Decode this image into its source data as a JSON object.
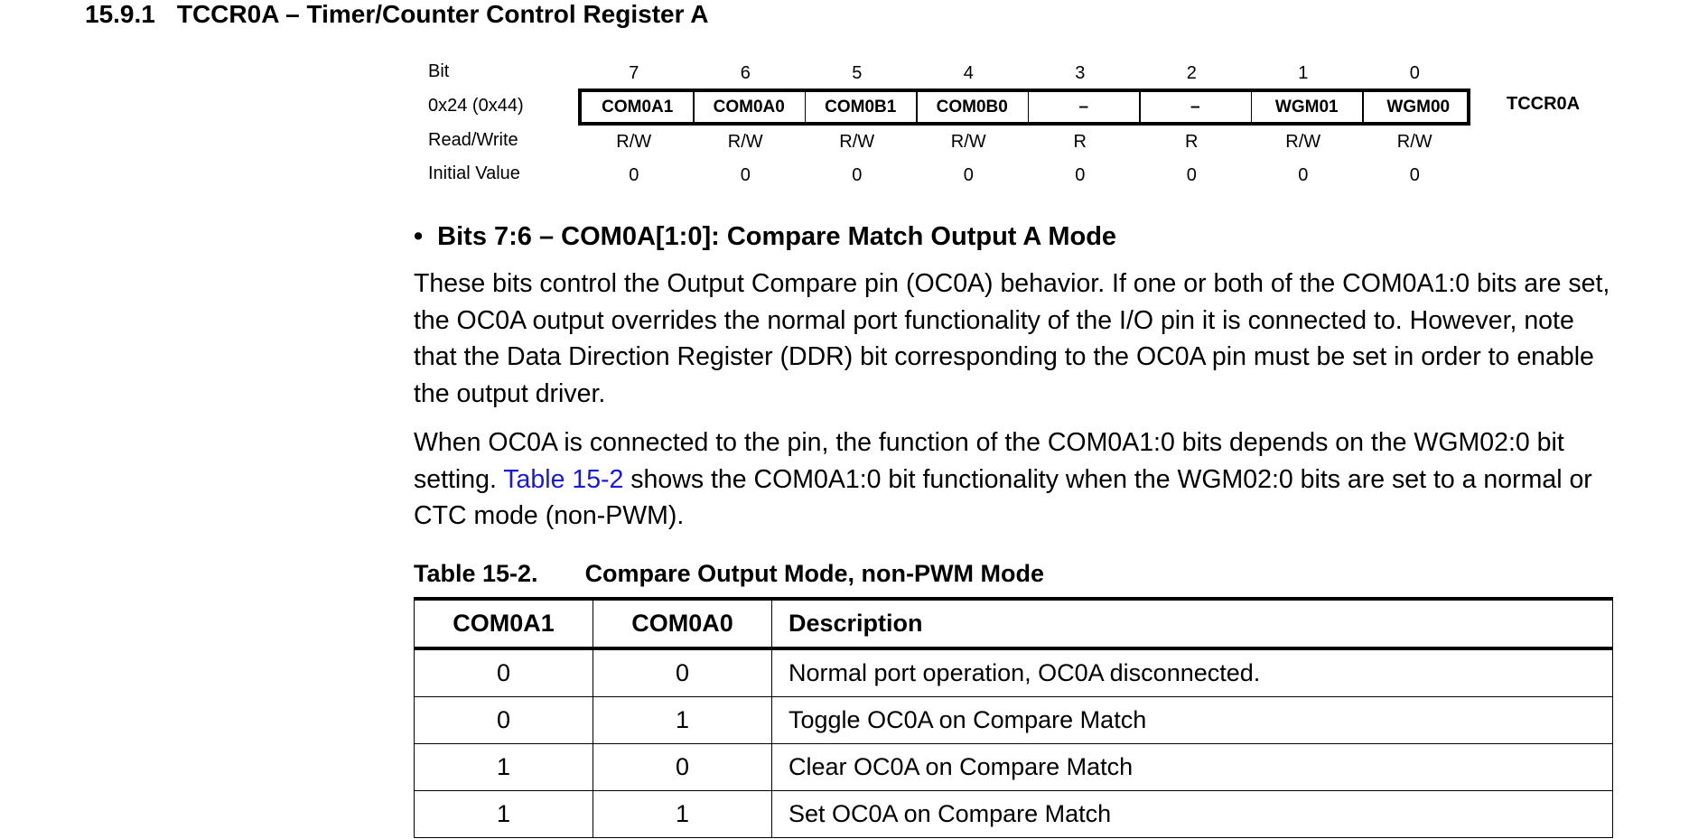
{
  "section": {
    "number": "15.9.1",
    "title": "TCCR0A – Timer/Counter Control Register A"
  },
  "register": {
    "row_labels": {
      "bit": "Bit",
      "address": "0x24 (0x44)",
      "rw": "Read/Write",
      "init": "Initial Value"
    },
    "bits": [
      "7",
      "6",
      "5",
      "4",
      "3",
      "2",
      "1",
      "0"
    ],
    "names": [
      "COM0A1",
      "COM0A0",
      "COM0B1",
      "COM0B0",
      "–",
      "–",
      "WGM01",
      "WGM00"
    ],
    "rw": [
      "R/W",
      "R/W",
      "R/W",
      "R/W",
      "R",
      "R",
      "R/W",
      "R/W"
    ],
    "initial": [
      "0",
      "0",
      "0",
      "0",
      "0",
      "0",
      "0",
      "0"
    ],
    "register_name": "TCCR0A"
  },
  "bullet": {
    "marker": "•",
    "heading": "Bits 7:6 – COM0A[1:0]: Compare Match Output A Mode"
  },
  "paragraphs": {
    "p1": "These bits control the Output Compare pin (OC0A) behavior. If one or both of the COM0A1:0 bits are set, the OC0A output overrides the normal port functionality of the I/O pin it is connected to. However, note that the Data Direction Register (DDR) bit corresponding to the OC0A pin must be set in order to enable the output driver.",
    "p2_before": "When OC0A is connected to the pin, the function of the COM0A1:0 bits depends on the WGM02:0 bit setting. ",
    "p2_link": "Table 15-2",
    "p2_after": " shows the COM0A1:0 bit functionality when the WGM02:0 bits are set to a normal or CTC mode (non-PWM)."
  },
  "table": {
    "caption_number": "Table 15-2.",
    "caption_title": "Compare Output Mode, non-PWM Mode",
    "headers": [
      "COM0A1",
      "COM0A0",
      "Description"
    ],
    "rows": [
      [
        "0",
        "0",
        "Normal port operation, OC0A disconnected."
      ],
      [
        "0",
        "1",
        "Toggle OC0A on Compare Match"
      ],
      [
        "1",
        "0",
        "Clear OC0A on Compare Match"
      ],
      [
        "1",
        "1",
        "Set OC0A on Compare Match"
      ]
    ]
  },
  "colors": {
    "link": "#1a1ad6",
    "text": "#000000"
  }
}
